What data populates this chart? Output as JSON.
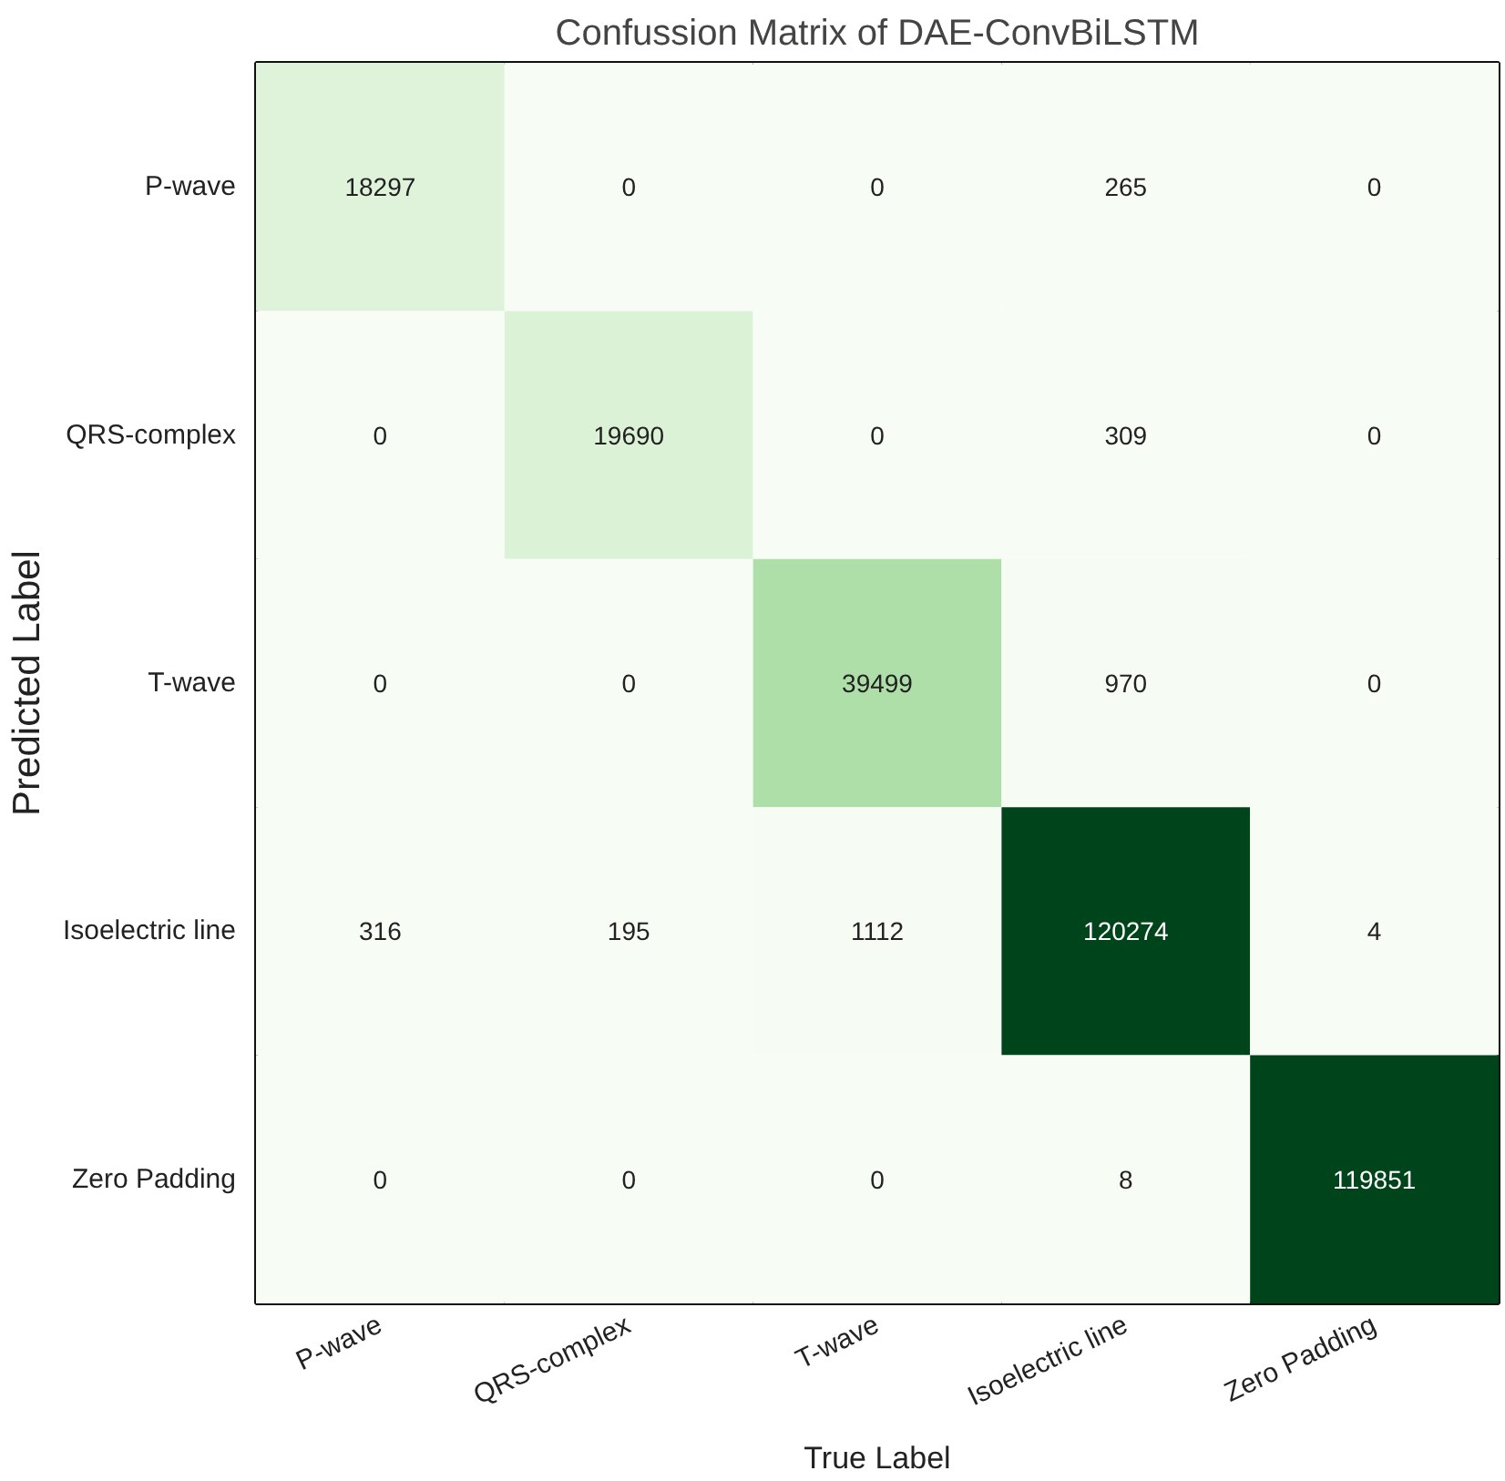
{
  "chart_data": {
    "type": "heatmap",
    "title": "Confussion Matrix of DAE-ConvBiLSTM",
    "xlabel": "True Label",
    "ylabel": "Predicted Label",
    "categories": [
      "P-wave",
      "QRS-complex",
      "T-wave",
      "Isoelectric line",
      "Zero Padding"
    ],
    "y_categories": [
      "P-wave",
      "QRS-complex",
      "T-wave",
      "Isoelectric line",
      "Zero Padding"
    ],
    "cells": [
      [
        18297,
        0,
        0,
        265,
        0
      ],
      [
        0,
        19690,
        0,
        309,
        0
      ],
      [
        0,
        0,
        39499,
        970,
        0
      ],
      [
        316,
        195,
        1112,
        120274,
        4
      ],
      [
        0,
        0,
        0,
        8,
        119851
      ]
    ],
    "data_labels": true
  }
}
